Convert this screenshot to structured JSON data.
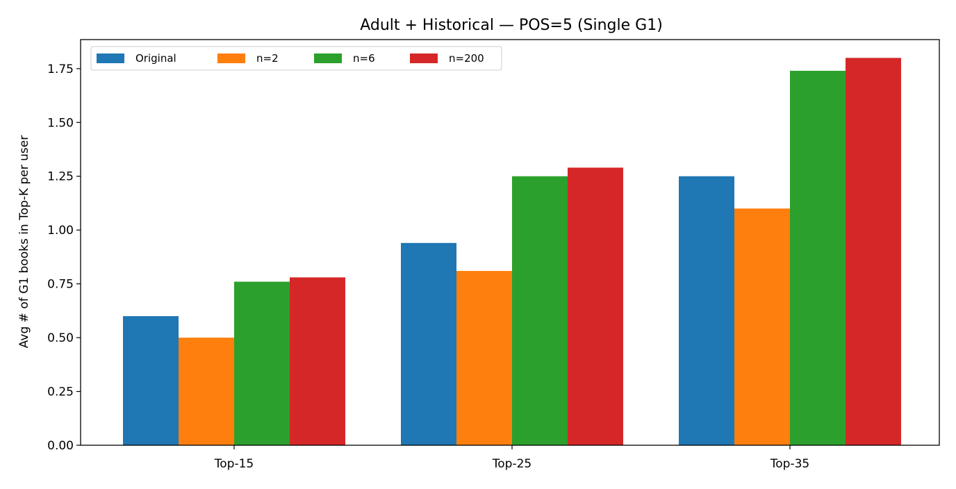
{
  "chart_data": {
    "type": "bar",
    "title": "Adult + Historical — POS=5 (Single G1)",
    "xlabel": "",
    "ylabel": "Avg # of G1 books in Top-K per user",
    "categories": [
      "Top-15",
      "Top-25",
      "Top-35"
    ],
    "series": [
      {
        "name": "Original",
        "color": "#1f77b4",
        "values": [
          0.6,
          0.94,
          1.25
        ]
      },
      {
        "name": "n=2",
        "color": "#ff7f0e",
        "values": [
          0.5,
          0.81,
          1.1
        ]
      },
      {
        "name": "n=6",
        "color": "#2ca02c",
        "values": [
          0.76,
          1.25,
          1.74
        ]
      },
      {
        "name": "n=200",
        "color": "#d62728",
        "values": [
          0.78,
          1.29,
          1.8
        ]
      }
    ],
    "ylim": [
      0,
      1.885
    ],
    "yticks": [
      0.0,
      0.25,
      0.5,
      0.75,
      1.0,
      1.25,
      1.5,
      1.75
    ],
    "ytick_labels": [
      "0.00",
      "0.25",
      "0.50",
      "0.75",
      "1.00",
      "1.25",
      "1.50",
      "1.75"
    ],
    "grid": false,
    "legend_position": "top-left"
  }
}
